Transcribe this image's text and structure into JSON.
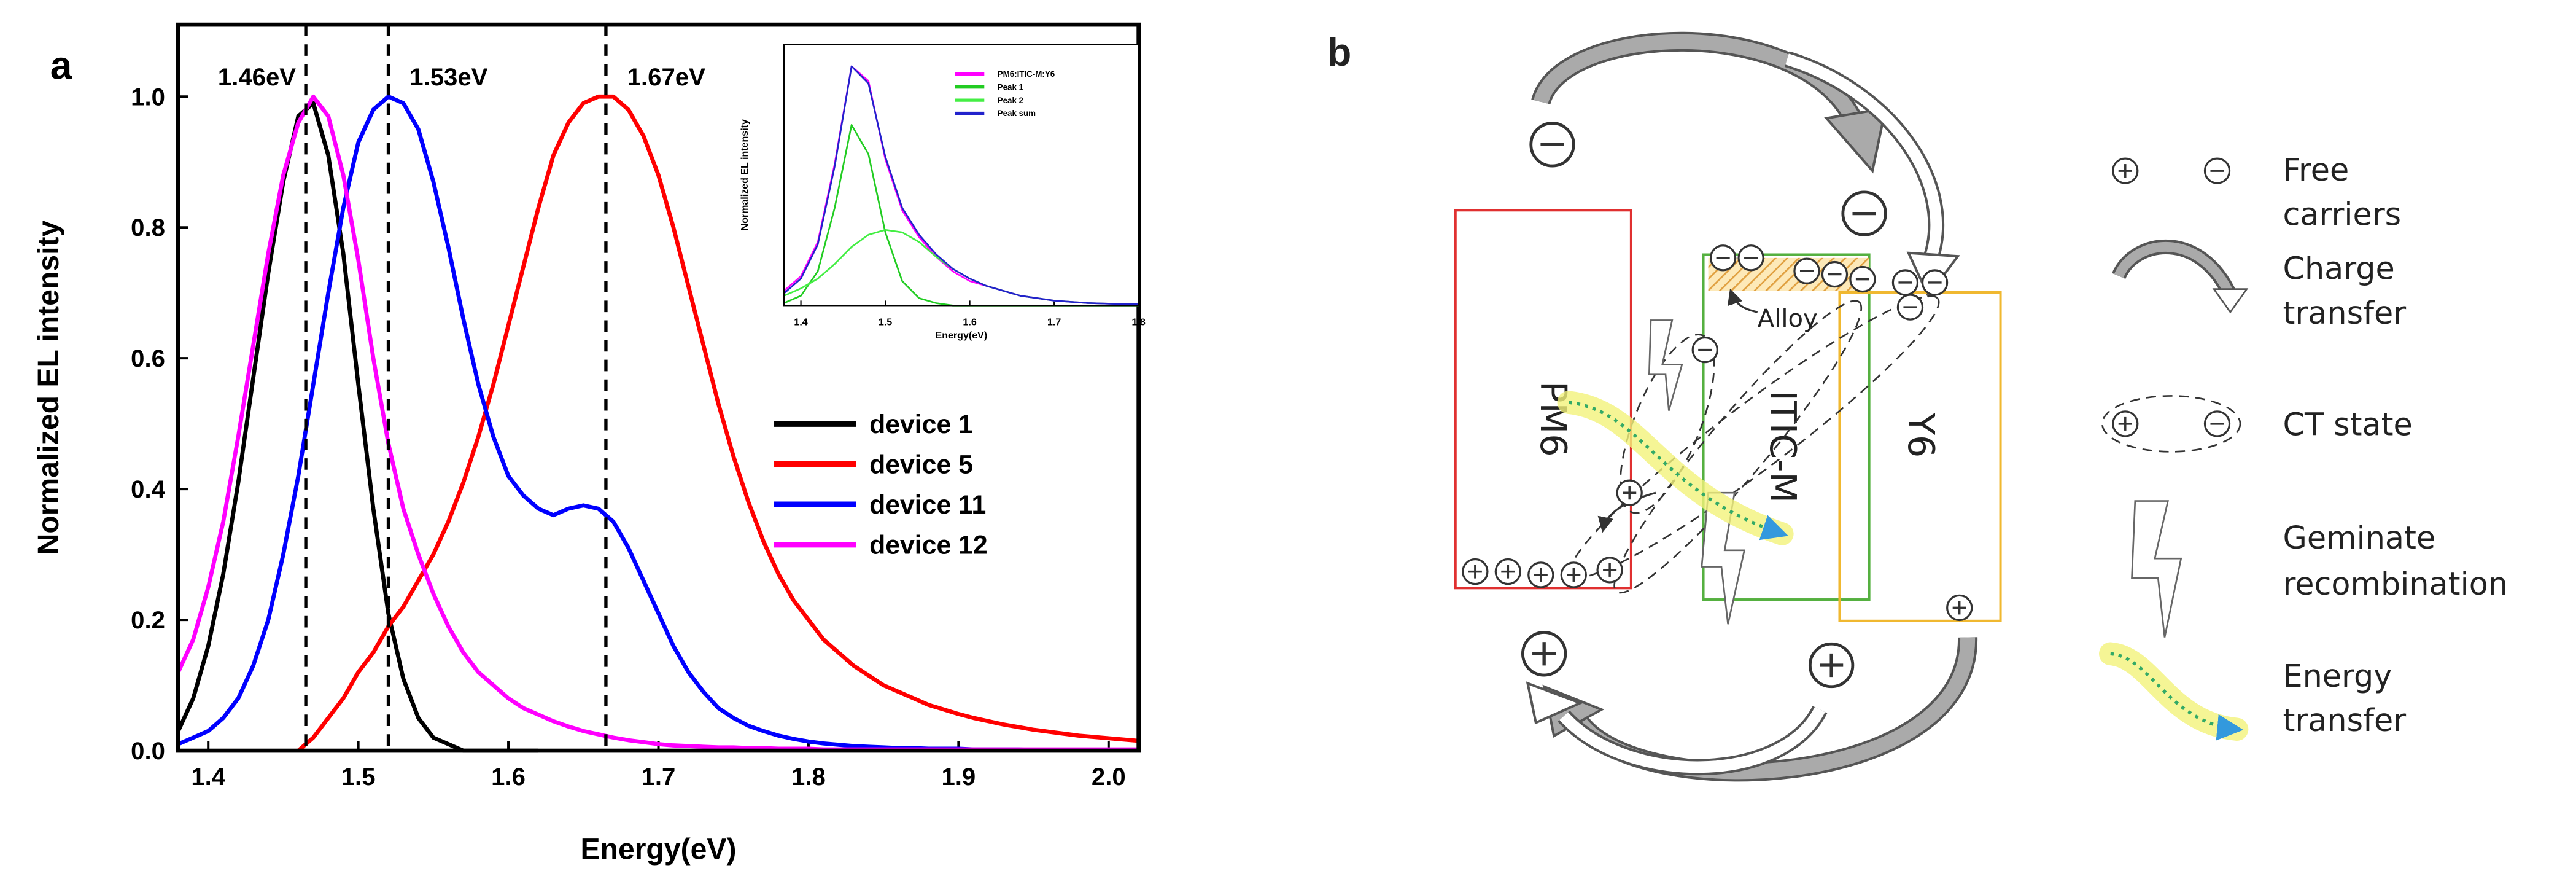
{
  "panel_labels": [
    "a",
    "b"
  ],
  "chart_data": [
    {
      "type": "line",
      "xlabel": "Energy(eV)",
      "ylabel": "Normalized EL intensity",
      "xlim": [
        1.38,
        2.02
      ],
      "ylim": [
        0,
        1.11
      ],
      "xticks": [
        1.4,
        1.5,
        1.6,
        1.7,
        1.8,
        1.9,
        {
          "value": 2,
          "label": "2.0"
        }
      ],
      "yticks": [
        {
          "value": 0,
          "label": "0.0"
        },
        {
          "value": 0.2,
          "label": "0.2"
        },
        {
          "value": 0.4,
          "label": "0.4"
        },
        {
          "value": 0.6,
          "label": "0.6"
        },
        {
          "value": 0.8,
          "label": "0.8"
        },
        {
          "value": 1,
          "label": "1.0"
        }
      ],
      "legend": "center right",
      "annotations": [
        {
          "text": "1.46eV",
          "x": 1.465
        },
        {
          "text": "1.53eV",
          "x": 1.52
        },
        {
          "text": "1.67eV",
          "x": 1.665
        }
      ],
      "x": [
        1.38,
        1.39,
        1.4,
        1.41,
        1.42,
        1.43,
        1.44,
        1.45,
        1.46,
        1.47,
        1.48,
        1.49,
        1.5,
        1.51,
        1.52,
        1.53,
        1.54,
        1.55,
        1.56,
        1.57,
        1.58,
        1.59,
        1.6,
        1.61,
        1.62,
        1.63,
        1.64,
        1.65,
        1.66,
        1.67,
        1.68,
        1.69,
        1.7,
        1.71,
        1.72,
        1.73,
        1.74,
        1.75,
        1.76,
        1.77,
        1.78,
        1.79,
        1.8,
        1.81,
        1.82,
        1.83,
        1.84,
        1.85,
        1.86,
        1.87,
        1.88,
        1.89,
        1.9,
        1.91,
        1.92,
        1.93,
        1.94,
        1.95,
        1.96,
        1.97,
        1.98,
        1.99,
        2.0,
        2.01,
        2.02
      ],
      "series": [
        {
          "name": "device 1",
          "color": "#000000",
          "values": [
            0.03,
            0.08,
            0.16,
            0.27,
            0.41,
            0.57,
            0.73,
            0.87,
            0.97,
            0.99,
            0.91,
            0.76,
            0.56,
            0.37,
            0.21,
            0.11,
            0.05,
            0.02,
            0.01,
            0,
            0,
            0,
            0,
            0,
            0,
            null,
            null,
            null,
            null,
            null,
            null,
            null,
            null,
            null,
            null,
            null,
            null,
            null,
            null,
            null,
            null,
            null,
            null,
            null,
            null,
            null,
            null,
            null,
            null,
            null,
            null,
            null,
            null,
            null,
            null,
            null,
            null,
            null,
            null,
            null,
            null,
            null,
            null,
            null,
            null
          ]
        },
        {
          "name": "device 5",
          "color": "#ff0000",
          "values": [
            null,
            null,
            null,
            null,
            null,
            null,
            null,
            null,
            0,
            0.02,
            0.05,
            0.08,
            0.12,
            0.15,
            0.19,
            0.22,
            0.26,
            0.3,
            0.35,
            0.41,
            0.48,
            0.56,
            0.65,
            0.74,
            0.83,
            0.91,
            0.96,
            0.99,
            1.0,
            1.0,
            0.98,
            0.94,
            0.88,
            0.8,
            0.71,
            0.62,
            0.53,
            0.45,
            0.38,
            0.32,
            0.27,
            0.23,
            0.2,
            0.17,
            0.15,
            0.13,
            0.115,
            0.1,
            0.09,
            0.08,
            0.07,
            0.063,
            0.056,
            0.05,
            0.045,
            0.04,
            0.036,
            0.032,
            0.029,
            0.026,
            0.023,
            0.021,
            0.019,
            0.017,
            0.015
          ]
        },
        {
          "name": "device 11",
          "color": "#0000ff",
          "values": [
            0.01,
            0.02,
            0.03,
            0.05,
            0.08,
            0.13,
            0.2,
            0.3,
            0.42,
            0.56,
            0.7,
            0.83,
            0.93,
            0.98,
            1.0,
            0.99,
            0.95,
            0.87,
            0.77,
            0.66,
            0.56,
            0.48,
            0.42,
            0.39,
            0.37,
            0.36,
            0.37,
            0.375,
            0.37,
            0.35,
            0.31,
            0.26,
            0.21,
            0.16,
            0.12,
            0.09,
            0.065,
            0.05,
            0.038,
            0.03,
            0.023,
            0.018,
            0.014,
            0.011,
            0.009,
            0.007,
            0.006,
            0.005,
            0.004,
            0.004,
            0.003,
            0.003,
            0.003,
            0.002,
            0.002,
            0.002,
            0.002,
            0.001,
            0.001,
            0.001,
            0.001,
            0.001,
            0.001,
            0.001,
            0.001
          ]
        },
        {
          "name": "device 12",
          "color": "#ff00ff",
          "values": [
            0.12,
            0.17,
            0.25,
            0.35,
            0.48,
            0.62,
            0.76,
            0.88,
            0.96,
            1.0,
            0.97,
            0.88,
            0.75,
            0.6,
            0.47,
            0.37,
            0.3,
            0.24,
            0.19,
            0.15,
            0.12,
            0.1,
            0.08,
            0.065,
            0.055,
            0.045,
            0.037,
            0.03,
            0.025,
            0.02,
            0.016,
            0.013,
            0.01,
            0.008,
            0.007,
            0.006,
            0.005,
            0.005,
            0.004,
            0.004,
            0.003,
            0.003,
            0.003,
            0.002,
            0.002,
            0.002,
            0.002,
            0.002,
            0.002,
            0.002,
            0.002,
            0.002,
            0.002,
            0.002,
            0.002,
            0.002,
            0.002,
            0.002,
            0.002,
            0.002,
            0.002,
            0.002,
            0.002,
            0.002,
            0.002
          ]
        }
      ]
    },
    {
      "type": "line",
      "xlabel": "Energy(eV)",
      "ylabel": "Normalized EL intensity",
      "xlim": [
        1.38,
        1.8
      ],
      "ylim": [
        0,
        1.07
      ],
      "xticks": [
        1.4,
        1.5,
        1.6,
        1.7,
        1.8
      ],
      "legend": "upper right",
      "x": [
        1.38,
        1.4,
        1.42,
        1.44,
        1.46,
        1.48,
        1.5,
        1.52,
        1.54,
        1.56,
        1.58,
        1.6,
        1.62,
        1.64,
        1.66,
        1.68,
        1.7,
        1.72,
        1.74,
        1.76,
        1.78,
        1.8
      ],
      "series": [
        {
          "name": "PM6:ITIC-M:Y6",
          "color": "#ff00ff",
          "values": [
            0.06,
            0.12,
            0.26,
            0.58,
            0.98,
            0.92,
            0.6,
            0.39,
            0.28,
            0.2,
            0.14,
            0.1,
            0.08,
            0.06,
            0.04,
            0.03,
            0.02,
            0.015,
            0.01,
            0.008,
            0.006,
            0.005
          ]
        },
        {
          "name": "Peak 1",
          "color": "#22cc22",
          "values": [
            0.01,
            0.04,
            0.14,
            0.4,
            0.74,
            0.62,
            0.3,
            0.1,
            0.03,
            0.01,
            0,
            0,
            0,
            0,
            0,
            0,
            0,
            0,
            0,
            0,
            0,
            0
          ]
        },
        {
          "name": "Peak 2",
          "color": "#44ee44",
          "values": [
            0.04,
            0.07,
            0.11,
            0.17,
            0.24,
            0.29,
            0.31,
            0.3,
            0.26,
            0.2,
            0.15,
            0.11,
            0.08,
            0.06,
            0.04,
            0.03,
            0.02,
            0.015,
            0.01,
            0.008,
            0.006,
            0.005
          ]
        },
        {
          "name": "Peak sum",
          "color": "#2222cc",
          "values": [
            0.05,
            0.11,
            0.25,
            0.57,
            0.98,
            0.91,
            0.61,
            0.4,
            0.29,
            0.21,
            0.15,
            0.11,
            0.08,
            0.06,
            0.04,
            0.03,
            0.02,
            0.015,
            0.01,
            0.008,
            0.006,
            0.005
          ]
        }
      ]
    }
  ],
  "panel_b": {
    "regions": [
      "PM6",
      "ITIC-M",
      "Y6"
    ],
    "alloy": "Alloy",
    "legend": [
      {
        "lines": [
          "Free",
          "carriers"
        ]
      },
      {
        "lines": [
          "Charge",
          "transfer"
        ]
      },
      {
        "lines": [
          "CT state"
        ]
      },
      {
        "lines": [
          "Geminate",
          "recombination"
        ]
      },
      {
        "lines": [
          "Energy",
          "transfer"
        ]
      }
    ]
  }
}
